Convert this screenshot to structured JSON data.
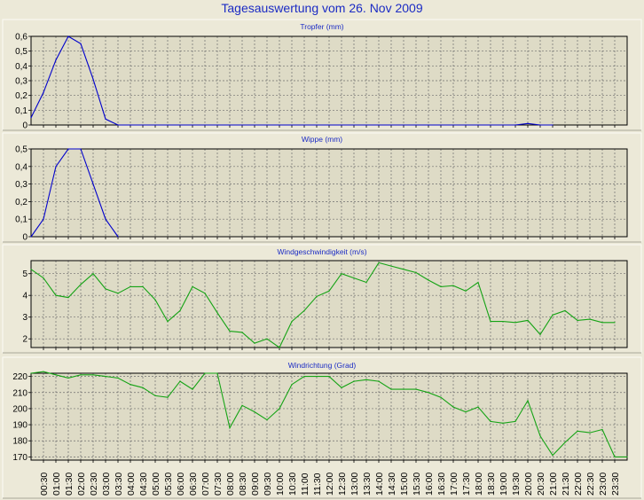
{
  "page": {
    "title": "Tagesauswertung vom 26. Nov 2009"
  },
  "colors": {
    "background": "#ece9d8",
    "plot_area": "#dedbc6",
    "rain": "#0000cc",
    "wind": "#15a315",
    "grid": "#6e6e6e",
    "title": "#1b2bc4"
  },
  "chart_data": [
    {
      "type": "line",
      "title": "Tropfer (mm)",
      "color": "#0000cc",
      "ylim": [
        0,
        0.6
      ],
      "yticks": [
        "0",
        "0,1",
        "0,2",
        "0,3",
        "0,4",
        "0,5",
        "0,6"
      ],
      "x": [
        0,
        0.5,
        1,
        1.5,
        2,
        2.5,
        3,
        3.5,
        4,
        19.5,
        20,
        20.5,
        21
      ],
      "values": [
        0.05,
        0.22,
        0.44,
        0.6,
        0.55,
        0.31,
        0.04,
        0.0,
        0.0,
        0.0,
        0.01,
        0.0,
        0.0
      ],
      "grid": true
    },
    {
      "type": "line",
      "title": "Wippe (mm)",
      "color": "#0000cc",
      "ylim": [
        0,
        0.5
      ],
      "yticks": [
        "0",
        "0,1",
        "0,2",
        "0,3",
        "0,4",
        "0,5"
      ],
      "x": [
        0,
        0.5,
        1,
        1.5,
        2,
        2.5,
        3,
        3.5
      ],
      "values": [
        0.0,
        0.1,
        0.4,
        0.5,
        0.5,
        0.3,
        0.1,
        0.0
      ],
      "grid": true
    },
    {
      "type": "line",
      "title": "Windgeschwindigkeit (m/s)",
      "color": "#15a315",
      "ylim": [
        1.6,
        5.6
      ],
      "yticks": [
        "2",
        "3",
        "4",
        "5"
      ],
      "ytick_values": [
        2,
        3,
        4,
        5
      ],
      "x": [
        0,
        0.5,
        1,
        1.5,
        2,
        2.5,
        3,
        3.5,
        4,
        4.5,
        5,
        5.5,
        6,
        6.5,
        7,
        7.5,
        8,
        8.5,
        9,
        9.5,
        10,
        10.5,
        11,
        11.5,
        12,
        12.5,
        13,
        13.5,
        14,
        14.5,
        15,
        15.5,
        16,
        16.5,
        17,
        17.5,
        18,
        18.5,
        19,
        19.5,
        20,
        20.5,
        21,
        21.5,
        22,
        22.5,
        23,
        23.5
      ],
      "values": [
        5.2,
        4.8,
        4.0,
        3.9,
        4.5,
        5.0,
        4.3,
        4.1,
        4.4,
        4.4,
        3.8,
        2.8,
        3.3,
        4.4,
        4.1,
        3.2,
        2.35,
        2.3,
        1.8,
        2.0,
        1.6,
        2.8,
        3.3,
        3.95,
        4.2,
        5.0,
        4.8,
        4.6,
        5.5,
        5.35,
        5.2,
        5.05,
        4.7,
        4.4,
        4.45,
        4.2,
        4.6,
        2.8,
        2.8,
        2.75,
        2.85,
        2.2,
        3.1,
        3.3,
        2.85,
        2.9,
        2.75,
        2.75
      ],
      "grid": true
    },
    {
      "type": "line",
      "title": "Windrichtung (Grad)",
      "color": "#15a315",
      "ylim": [
        168,
        222
      ],
      "yticks": [
        "170",
        "180",
        "190",
        "200",
        "210",
        "220"
      ],
      "ytick_values": [
        170,
        180,
        190,
        200,
        210,
        220
      ],
      "x": [
        0,
        0.5,
        1,
        1.5,
        2,
        2.5,
        3,
        3.5,
        4,
        4.5,
        5,
        5.5,
        6,
        6.5,
        7,
        7.5,
        8,
        8.5,
        9,
        9.5,
        10,
        10.5,
        11,
        11.5,
        12,
        12.5,
        13,
        13.5,
        14,
        14.5,
        15,
        15.5,
        16,
        16.5,
        17,
        17.5,
        18,
        18.5,
        19,
        19.5,
        20,
        20.5,
        21,
        21.5,
        22,
        22.5,
        23,
        23.5,
        24
      ],
      "values": [
        222,
        223,
        221,
        219,
        221,
        221,
        220,
        219,
        215,
        213,
        208,
        207,
        217,
        212,
        222,
        222,
        188,
        202,
        198,
        193,
        200,
        215,
        220,
        220,
        220,
        213,
        217,
        218,
        217,
        212,
        212,
        212,
        210,
        207,
        201,
        198,
        201,
        192,
        191,
        192,
        205,
        183,
        171,
        179,
        186,
        185,
        187,
        170,
        170
      ],
      "grid": true,
      "xticks": [
        "00:30",
        "01:00",
        "01:30",
        "02:00",
        "02:30",
        "03:00",
        "03:30",
        "04:00",
        "04:30",
        "05:00",
        "05:30",
        "06:00",
        "06:30",
        "07:00",
        "07:30",
        "08:00",
        "08:30",
        "09:00",
        "09:30",
        "10:00",
        "10:30",
        "11:00",
        "11:30",
        "12:00",
        "12:30",
        "13:00",
        "13:30",
        "14:00",
        "14:30",
        "15:00",
        "15:30",
        "16:00",
        "16:30",
        "17:00",
        "17:30",
        "18:00",
        "18:30",
        "19:00",
        "19:30",
        "20:00",
        "20:30",
        "21:00",
        "21:30",
        "22:00",
        "22:30",
        "23:00",
        "23:30"
      ]
    }
  ]
}
